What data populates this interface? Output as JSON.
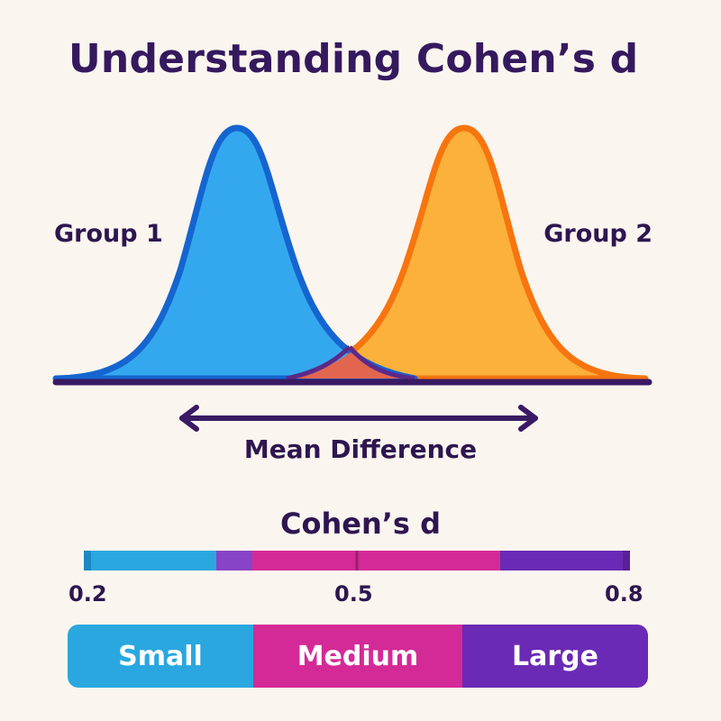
{
  "title": "Understanding Cohen’s d",
  "groups": [
    {
      "label": "Group 1",
      "color": "#34a8ef",
      "stroke": "#1565d0"
    },
    {
      "label": "Group 2",
      "color": "#fcb13b",
      "stroke": "#f7750f"
    }
  ],
  "overlap_color": "#e2664f",
  "baseline_color": "#3a1a63",
  "mean_difference_label": "Mean Difference",
  "scale": {
    "title": "Cohen’s d",
    "ticks": [
      "0.2",
      "0.5",
      "0.8"
    ],
    "bar_colors": [
      "#2aa7df",
      "#8843c6",
      "#d42a97",
      "#6a2ab5"
    ]
  },
  "categories": [
    {
      "label": "Small",
      "color": "#2aa7df"
    },
    {
      "label": "Medium",
      "color": "#d42a97"
    },
    {
      "label": "Large",
      "color": "#6a2ab5"
    }
  ]
}
